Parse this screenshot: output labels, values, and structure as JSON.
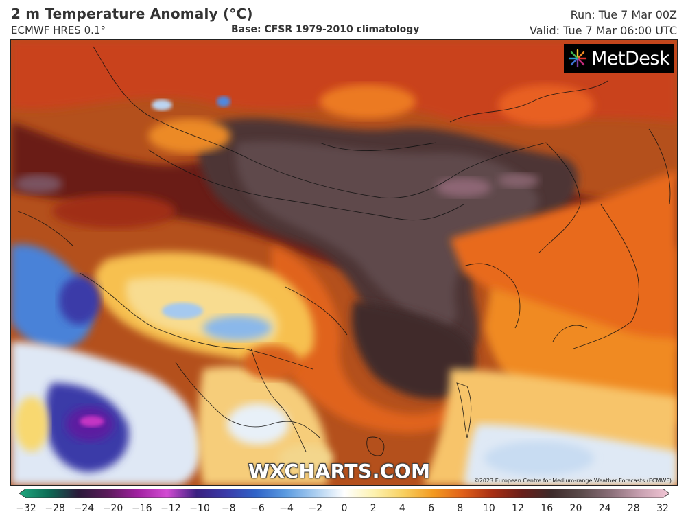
{
  "header": {
    "title": "2 m Temperature Anomaly (°C)",
    "model": "ECMWF HRES 0.1°",
    "base": "Base: CFSR 1979-2010 climatology",
    "run": "Run: Tue 7 Mar 00Z",
    "valid": "Valid: Tue 7 Mar 06:00 UTC"
  },
  "map": {
    "logo_text": "MetDesk",
    "logo_icon": "metdesk-starburst-icon",
    "watermark": "WXCHARTS.COM",
    "copyright": "©2023 European Centre for Medium-range Weather Forecasts (ECMWF)"
  },
  "colorbar": {
    "ticks": [
      "−32",
      "−28",
      "−24",
      "−20",
      "−16",
      "−12",
      "−10",
      "−8",
      "−6",
      "−4",
      "−2",
      "0",
      "2",
      "4",
      "6",
      "8",
      "10",
      "12",
      "16",
      "20",
      "24",
      "28",
      "32"
    ],
    "colors": [
      "#1fa87f",
      "#0d6b55",
      "#2b1a3a",
      "#5a1a5a",
      "#a020a0",
      "#d34bd3",
      "#3a2080",
      "#3a3aa8",
      "#2f63c8",
      "#5a9ae0",
      "#a9cdf0",
      "#ffffff",
      "#fdf2b0",
      "#f8d060",
      "#f39a20",
      "#e0601a",
      "#a82f14",
      "#6a1f1a",
      "#3d2a2a",
      "#5a4a4a",
      "#8a6e78",
      "#c7a0b0",
      "#f3c7d6"
    ]
  }
}
